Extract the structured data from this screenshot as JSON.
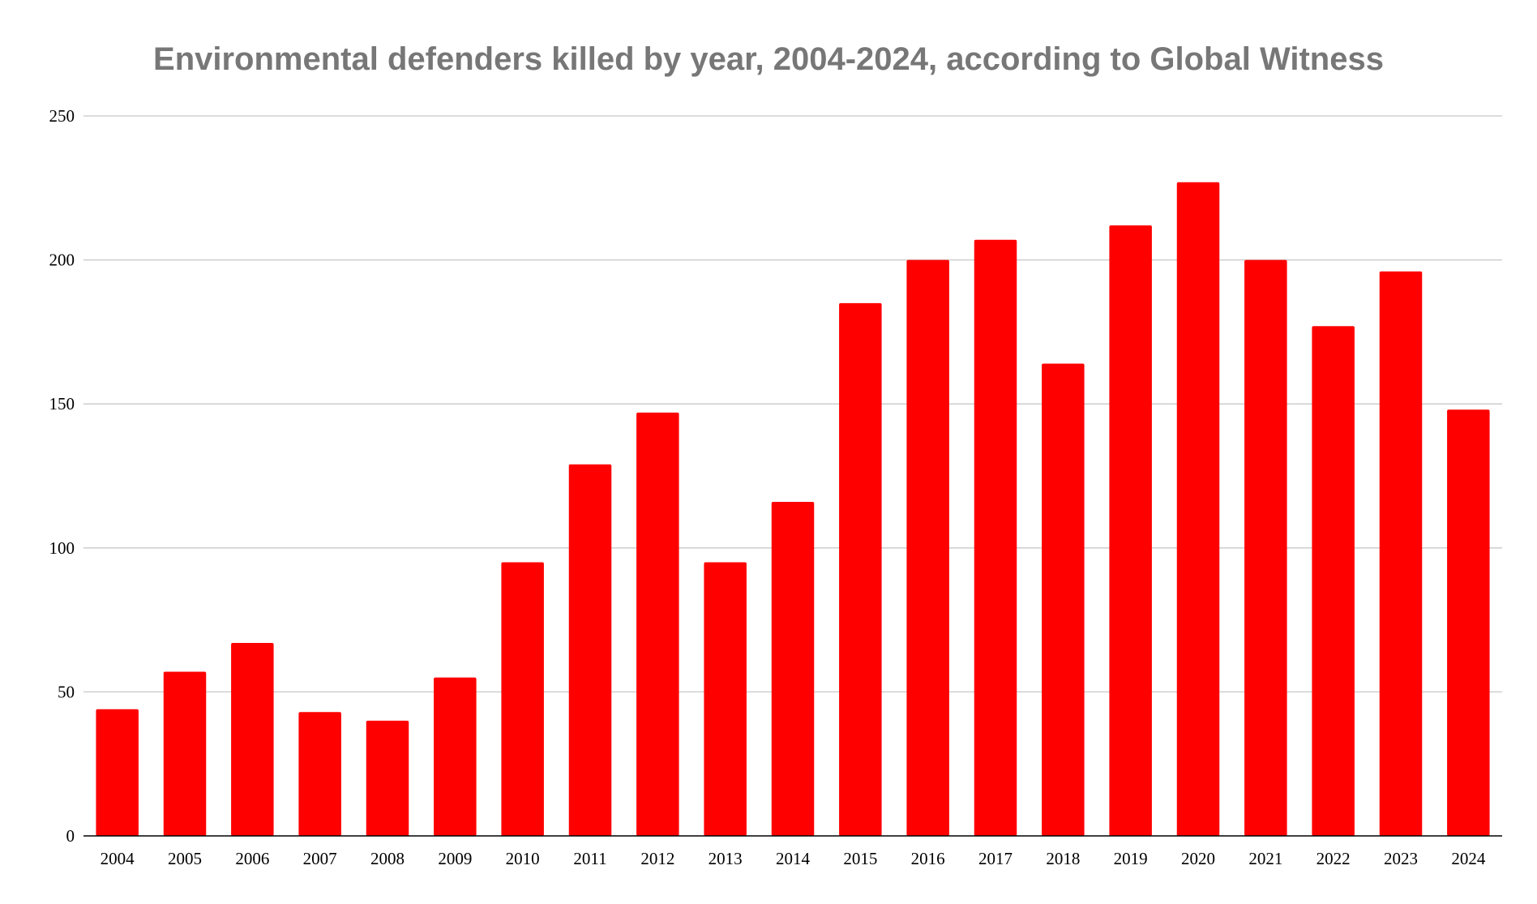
{
  "chart_data": {
    "type": "bar",
    "title": "Environmental defenders killed by year, 2004-2024, according to Global Witness",
    "xlabel": "",
    "ylabel": "",
    "categories": [
      "2004",
      "2005",
      "2006",
      "2007",
      "2008",
      "2009",
      "2010",
      "2011",
      "2012",
      "2013",
      "2014",
      "2015",
      "2016",
      "2017",
      "2018",
      "2019",
      "2020",
      "2021",
      "2022",
      "2023",
      "2024"
    ],
    "values": [
      44,
      57,
      67,
      43,
      40,
      55,
      95,
      129,
      147,
      95,
      116,
      185,
      200,
      207,
      164,
      212,
      227,
      200,
      177,
      196,
      148
    ],
    "ylim": [
      0,
      250
    ],
    "yticks": [
      0,
      50,
      100,
      150,
      200,
      250
    ],
    "grid": true,
    "legend": "none",
    "bar_color": "#ff0000"
  }
}
